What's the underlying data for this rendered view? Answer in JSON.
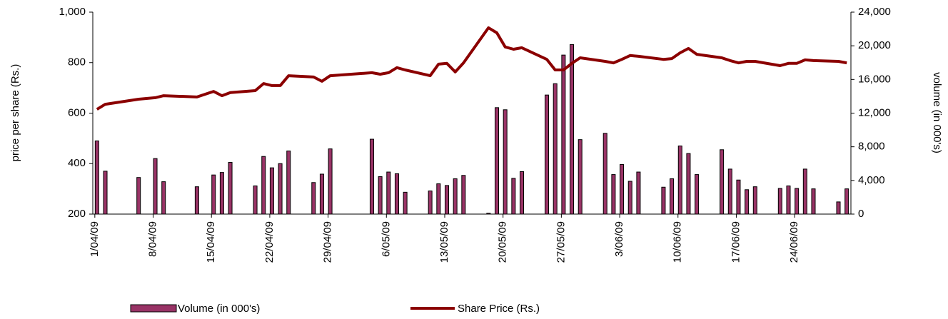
{
  "chart_data": {
    "type": "bar-line",
    "x": [
      "1/04/09",
      "2/04/09",
      "6/04/09",
      "8/04/09",
      "9/04/09",
      "13/04/09",
      "15/04/09",
      "16/04/09",
      "17/04/09",
      "20/04/09",
      "21/04/09",
      "22/04/09",
      "23/04/09",
      "24/04/09",
      "27/04/09",
      "28/04/09",
      "29/04/09",
      "4/05/09",
      "5/05/09",
      "6/05/09",
      "7/05/09",
      "8/05/09",
      "11/05/09",
      "12/05/09",
      "13/05/09",
      "14/05/09",
      "15/05/09",
      "18/05/09",
      "19/05/09",
      "20/05/09",
      "21/05/09",
      "22/05/09",
      "25/05/09",
      "26/05/09",
      "27/05/09",
      "28/05/09",
      "29/05/09",
      "1/06/09",
      "2/06/09",
      "3/06/09",
      "4/06/09",
      "5/06/09",
      "8/06/09",
      "9/06/09",
      "10/06/09",
      "11/06/09",
      "12/06/09",
      "15/06/09",
      "16/06/09",
      "17/06/09",
      "18/06/09",
      "19/06/09",
      "22/06/09",
      "23/06/09",
      "24/06/09",
      "25/06/09",
      "26/06/09",
      "29/06/09",
      "30/06/09"
    ],
    "xlim": [
      "1/04/09",
      "30/06/09"
    ],
    "xticks": [
      "1/04/09",
      "8/04/09",
      "15/04/09",
      "22/04/09",
      "29/04/09",
      "6/05/09",
      "13/05/09",
      "20/05/09",
      "27/05/09",
      "3/06/09",
      "10/06/09",
      "17/06/09",
      "24/06/09"
    ],
    "ylabel": "price per share (Rs.)",
    "y2label": "volume (in 000's)",
    "ylim": [
      200,
      1000
    ],
    "yticks": [
      200,
      400,
      600,
      800,
      {
        "value": 1000,
        "label": "1,000"
      }
    ],
    "y2lim": [
      0,
      24000
    ],
    "y2ticks": [
      0,
      {
        "value": 4000,
        "label": "4,000"
      },
      {
        "value": 8000,
        "label": "8,000"
      },
      {
        "value": 12000,
        "label": "12,000"
      },
      {
        "value": 16000,
        "label": "16,000"
      },
      {
        "value": 20000,
        "label": "20,000"
      },
      {
        "value": 24000,
        "label": "24,000"
      }
    ],
    "series": [
      {
        "name": "Volume (in 000's)",
        "type": "bar",
        "axis": "y2",
        "color": "#993366",
        "values": [
          8700,
          5100,
          4350,
          6600,
          3850,
          3250,
          4650,
          4950,
          6150,
          3350,
          6850,
          5500,
          6000,
          7500,
          3750,
          4750,
          7750,
          8900,
          4450,
          5000,
          4800,
          2600,
          2750,
          3600,
          3400,
          4200,
          4600,
          100,
          12650,
          12400,
          4250,
          5050,
          14150,
          15500,
          18900,
          20150,
          8850,
          9600,
          4700,
          5900,
          3900,
          5000,
          3200,
          4200,
          8100,
          7200,
          4700,
          7650,
          5350,
          4050,
          2900,
          3250,
          3050,
          3350,
          3050,
          5350,
          3000,
          1450,
          3000
        ]
      },
      {
        "name": "Share Price (Rs.)",
        "type": "line",
        "color": "#8b0000",
        "values": [
          615,
          635,
          655,
          661,
          669,
          664,
          686,
          669,
          681,
          689,
          717,
          709,
          709,
          748,
          743,
          726,
          748,
          760,
          754,
          760,
          780,
          771,
          748,
          794,
          797,
          763,
          799,
          938,
          918,
          862,
          853,
          859,
          813,
          771,
          771,
          797,
          819,
          805,
          799,
          813,
          828,
          825,
          813,
          816,
          839,
          856,
          833,
          819,
          808,
          799,
          805,
          805,
          788,
          797,
          797,
          811,
          808,
          805,
          799
        ]
      }
    ]
  }
}
